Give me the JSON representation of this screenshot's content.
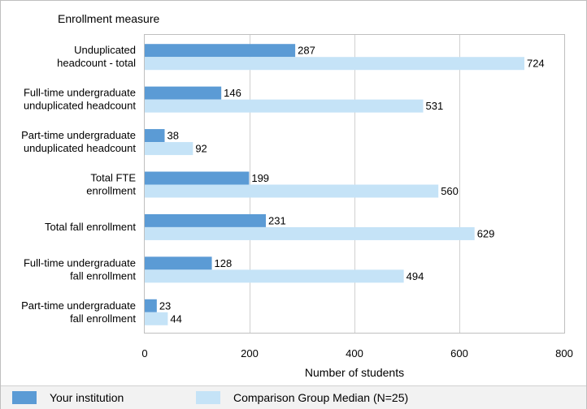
{
  "chart_data": {
    "type": "bar",
    "orientation": "horizontal",
    "ylabel": "Enrollment measure",
    "xlabel": "Number of students",
    "xlim": [
      0,
      800
    ],
    "xticks": [
      0,
      200,
      400,
      600,
      800
    ],
    "grid": true,
    "legend_position": "bottom",
    "categories": [
      [
        "Unduplicated",
        "headcount - total"
      ],
      [
        "Full-time undergraduate",
        "unduplicated headcount"
      ],
      [
        "Part-time undergraduate",
        "unduplicated headcount"
      ],
      [
        "Total FTE",
        "enrollment"
      ],
      [
        "Total fall enrollment"
      ],
      [
        "Full-time undergraduate",
        "fall enrollment"
      ],
      [
        "Part-time undergraduate",
        "fall enrollment"
      ]
    ],
    "series": [
      {
        "name": "Your institution",
        "color": "#5b9bd5",
        "values": [
          287,
          146,
          38,
          199,
          231,
          128,
          23
        ]
      },
      {
        "name": "Comparison Group Median (N=25)",
        "color": "#c5e3f7",
        "values": [
          724,
          531,
          92,
          560,
          629,
          494,
          44
        ]
      }
    ]
  }
}
